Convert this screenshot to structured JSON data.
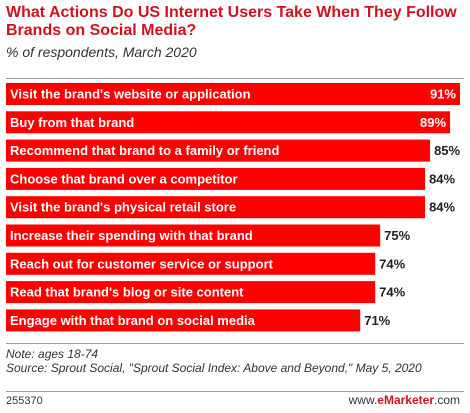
{
  "colors": {
    "bar": "#ff0000",
    "title": "#d0121c",
    "text": "#222222"
  },
  "chart_data": {
    "type": "bar",
    "orientation": "horizontal",
    "title": "What Actions Do US Internet Users Take When They Follow Brands on Social Media?",
    "subtitle": "% of respondents, March 2020",
    "unit": "%",
    "xlim": [
      0,
      100
    ],
    "categories": [
      "Visit the brand's website or application",
      "Buy from that brand",
      "Recommend that brand to a family or friend",
      "Choose that brand over a competitor",
      "Visit the brand's physical retail store",
      "Increase their spending with that brand",
      "Reach out for customer service or support",
      "Read that brand's blog or site content",
      "Engage with that brand on social media"
    ],
    "values": [
      91,
      89,
      85,
      84,
      84,
      75,
      74,
      74,
      71
    ]
  },
  "footnote": {
    "note": "Note: ages 18-74",
    "source": "Source: Sprout Social, \"Sprout Social Index: Above and Beyond,\" May 5, 2020"
  },
  "footer": {
    "chart_id": "255370",
    "brand_prefix": "www.",
    "brand_name": "eMarketer",
    "brand_suffix": ".com"
  }
}
